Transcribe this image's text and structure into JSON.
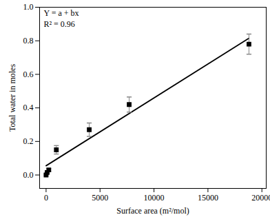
{
  "chart_data": {
    "type": "scatter",
    "x_label": "Surface area (m²/mol)",
    "y_label": "Total water in moles",
    "annotations": [
      "Y = a + bx",
      "R² = 0.96"
    ],
    "x": [
      0,
      100,
      250,
      950,
      4000,
      7700,
      18800
    ],
    "values": [
      0.0,
      0.015,
      0.03,
      0.15,
      0.27,
      0.42,
      0.78
    ],
    "errors": [
      0.005,
      0.005,
      0.008,
      0.025,
      0.04,
      0.045,
      0.06
    ],
    "color": "#000000",
    "marker": "square",
    "fit": {
      "x": [
        0,
        18800
      ],
      "values": [
        0.055,
        0.815
      ],
      "color": "#000000",
      "line_style": "solid"
    },
    "xlim": [
      -600,
      20400
    ],
    "xticks": [
      0,
      5000,
      10000,
      15000,
      20000
    ],
    "ylim": [
      -0.08,
      1.0
    ],
    "yticks": [
      {
        "value": 0,
        "label": "0.0"
      },
      {
        "value": 0.2,
        "label": "0.2"
      },
      {
        "value": 0.4,
        "label": "0.4"
      },
      {
        "value": 0.6,
        "label": "0.6"
      },
      {
        "value": 0.8,
        "label": "0.8"
      },
      {
        "value": 1.0,
        "label": "1.0"
      }
    ],
    "grid": false
  }
}
